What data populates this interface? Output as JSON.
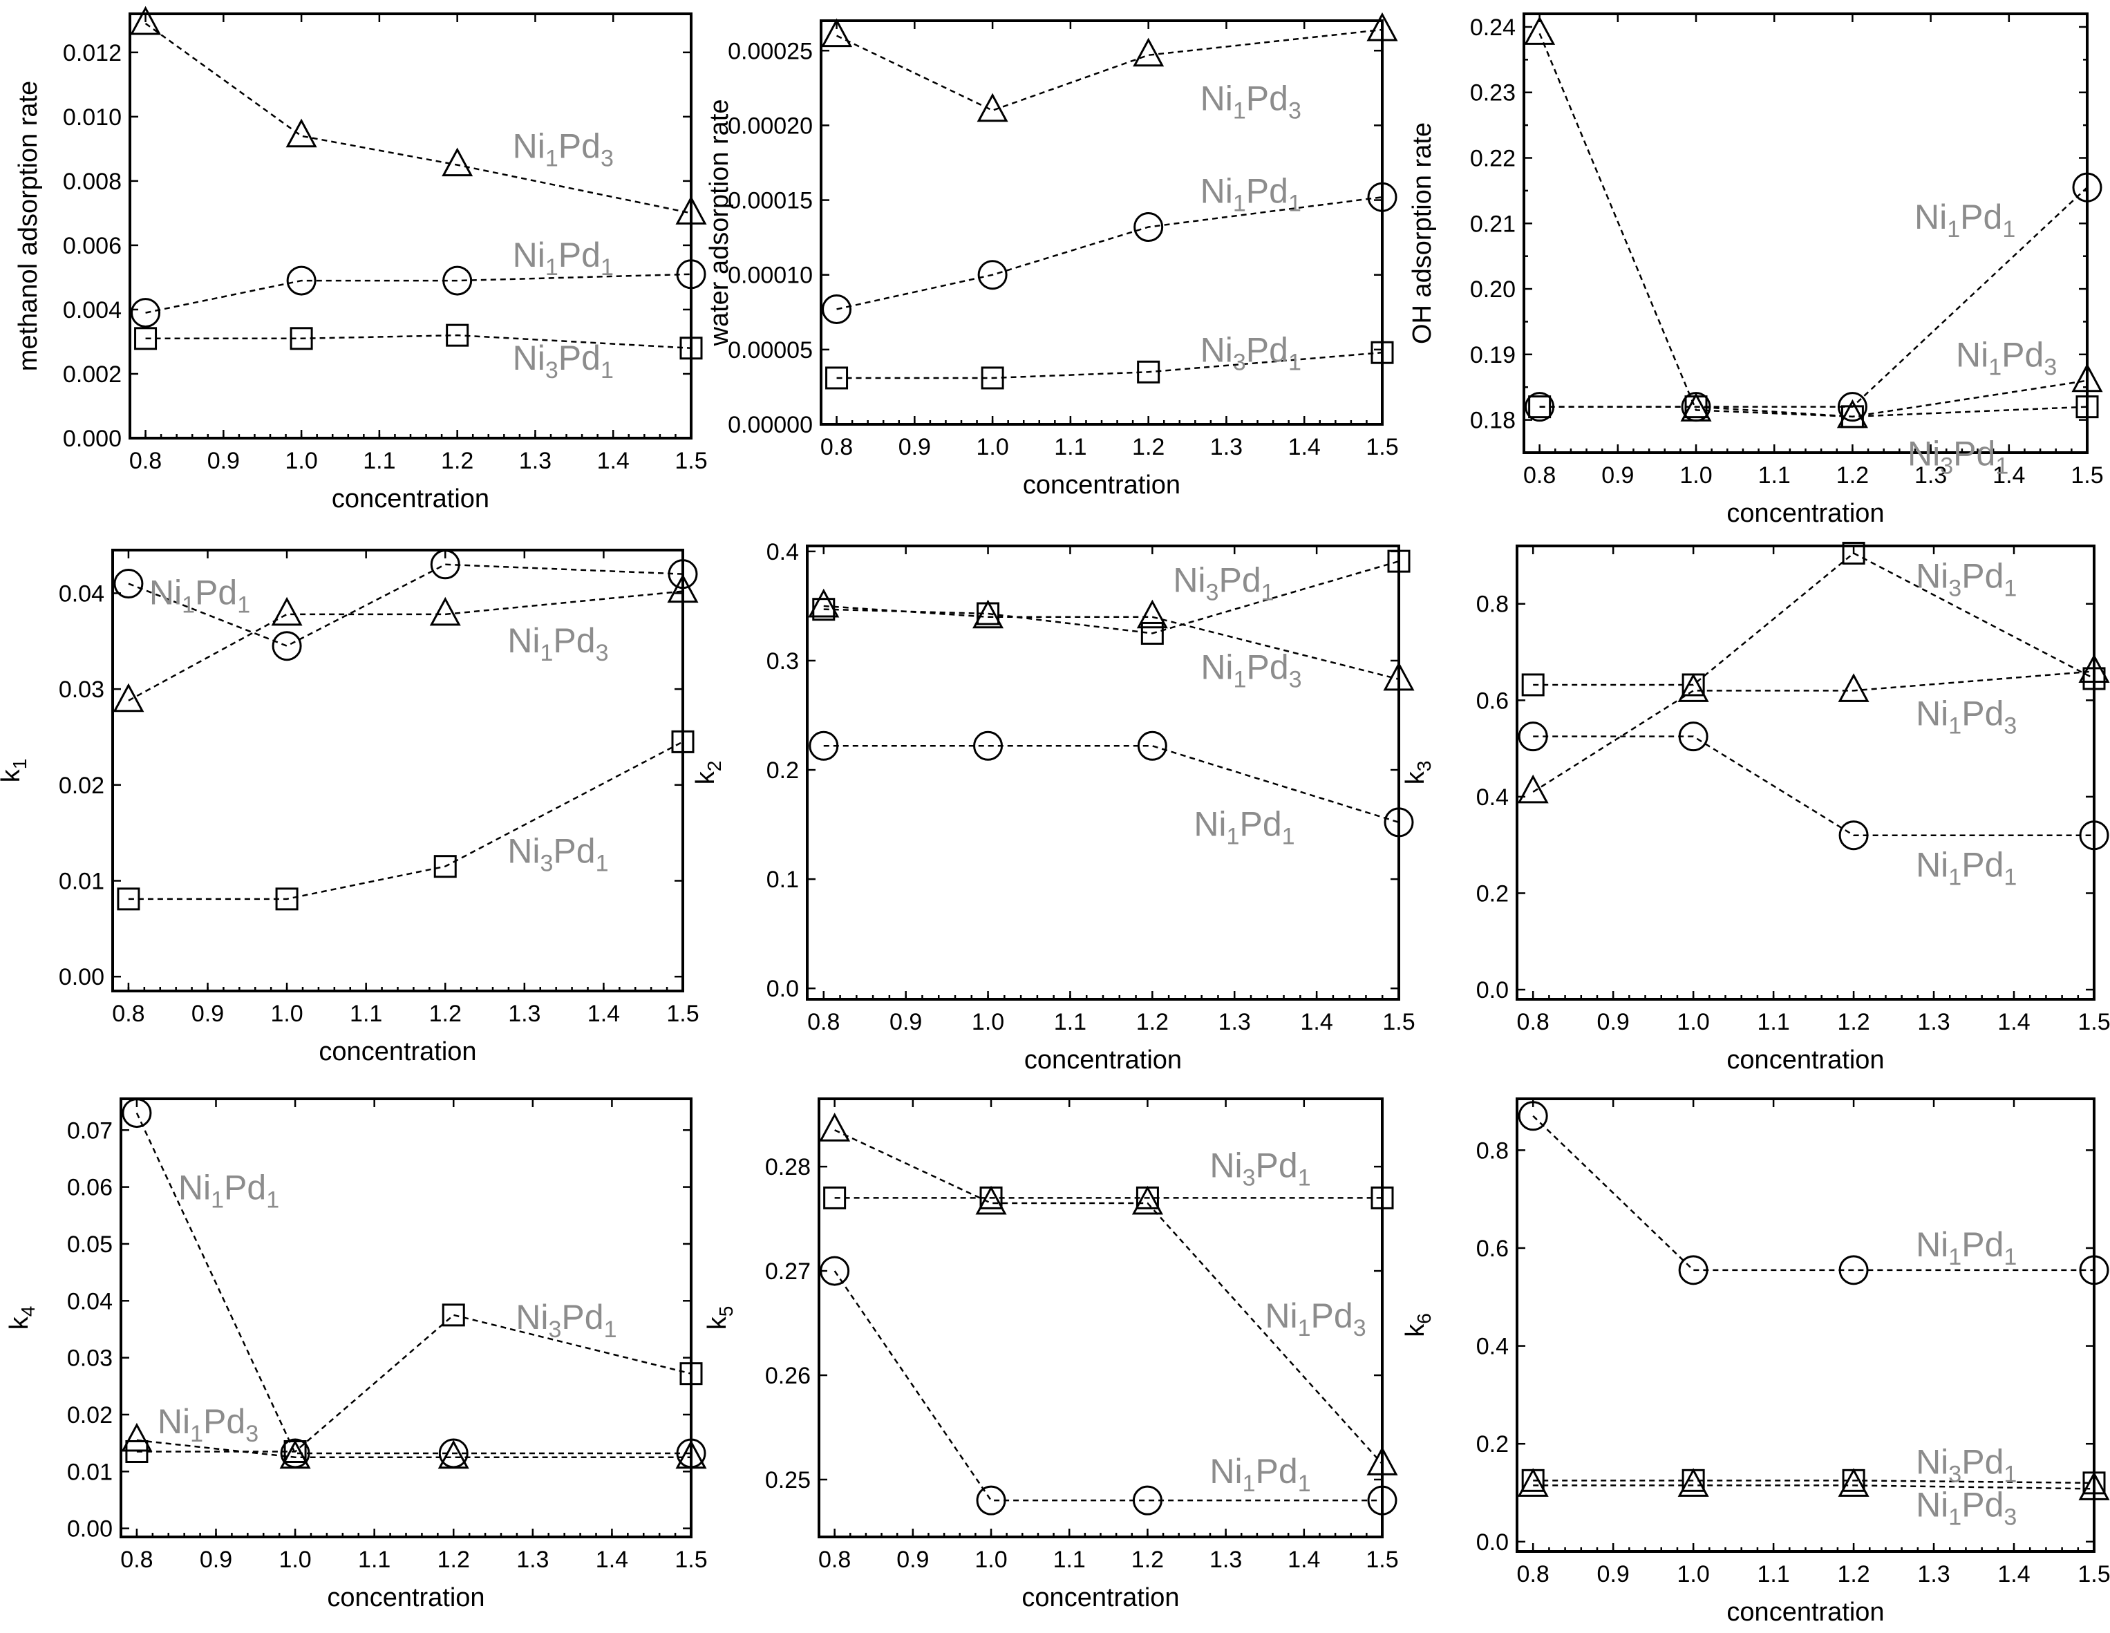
{
  "styles": {
    "series_label_color": "#8c8c8c",
    "line_color": "#000000",
    "background": "#ffffff"
  },
  "markers": {
    "Ni1Pd1": "circle",
    "Ni1Pd3": "triangle",
    "Ni3Pd1": "square"
  },
  "chart_data": [
    {
      "type": "line",
      "xlabel": "concentration",
      "ylabel": "methanol adsorption rate",
      "x": [
        0.8,
        1.0,
        1.2,
        1.5
      ],
      "xlim": [
        0.78,
        1.5
      ],
      "xticks": [
        "0.8",
        "0.9",
        "1.0",
        "1.1",
        "1.2",
        "1.3",
        "1.4",
        "1.5"
      ],
      "ylim": [
        0,
        0.0132
      ],
      "yticks": [
        "0.000",
        "0.002",
        "0.004",
        "0.006",
        "0.008",
        "0.010",
        "0.012"
      ],
      "series": [
        {
          "name": "Ni1Pd3",
          "marker": "triangle",
          "values": [
            0.0129,
            0.0094,
            0.0085,
            0.007
          ]
        },
        {
          "name": "Ni1Pd1",
          "marker": "circle",
          "values": [
            0.0039,
            0.0049,
            0.0049,
            0.0051
          ]
        },
        {
          "name": "Ni3Pd1",
          "marker": "square",
          "values": [
            0.0031,
            0.0031,
            0.0032,
            0.0028
          ]
        }
      ]
    },
    {
      "type": "line",
      "xlabel": "concentration",
      "ylabel": "water adsorption rate",
      "x": [
        0.8,
        1.0,
        1.2,
        1.5
      ],
      "xlim": [
        0.78,
        1.5
      ],
      "xticks": [
        "0.8",
        "0.9",
        "1.0",
        "1.1",
        "1.2",
        "1.3",
        "1.4",
        "1.5"
      ],
      "ylim": [
        0,
        0.00027
      ],
      "yticks": [
        "0.00000",
        "0.00005",
        "0.00010",
        "0.00015",
        "0.00020",
        "0.00025"
      ],
      "series": [
        {
          "name": "Ni1Pd3",
          "marker": "triangle",
          "values": [
            0.00026,
            0.00021,
            0.000247,
            0.000264
          ]
        },
        {
          "name": "Ni1Pd1",
          "marker": "circle",
          "values": [
            7.7e-05,
            0.0001,
            0.000132,
            0.000152
          ]
        },
        {
          "name": "Ni3Pd1",
          "marker": "square",
          "values": [
            3.1e-05,
            3.1e-05,
            3.5e-05,
            4.8e-05
          ]
        }
      ]
    },
    {
      "type": "line",
      "xlabel": "concentration",
      "ylabel": "OH adsorption rate",
      "x": [
        0.8,
        1.0,
        1.2,
        1.5
      ],
      "xlim": [
        0.78,
        1.5
      ],
      "xticks": [
        "0.8",
        "0.9",
        "1.0",
        "1.1",
        "1.2",
        "1.3",
        "1.4",
        "1.5"
      ],
      "ylim": [
        0.175,
        0.242
      ],
      "yticks": [
        "0.180",
        "0.185",
        "0.190",
        "0.195",
        "0.200",
        "0.205",
        "0.210",
        "0.215",
        "0.220",
        "0.225",
        "0.230",
        "0.235",
        "0.240"
      ],
      "yticks_labels": [
        "0.18",
        "0.19",
        "0.20",
        "0.21",
        "0.22",
        "0.23",
        "0.24"
      ],
      "series": [
        {
          "name": "Ni1Pd3",
          "marker": "triangle",
          "values": [
            0.239,
            0.1815,
            0.1805,
            0.186
          ]
        },
        {
          "name": "Ni1Pd1",
          "marker": "circle",
          "values": [
            0.182,
            0.182,
            0.182,
            0.2155
          ]
        },
        {
          "name": "Ni3Pd1",
          "marker": "square",
          "values": [
            0.182,
            0.182,
            0.1805,
            0.182
          ]
        }
      ]
    },
    {
      "type": "line",
      "xlabel": "concentration",
      "ylabel": "k",
      "ylabel_sub": "1",
      "x": [
        0.8,
        1.0,
        1.2,
        1.5
      ],
      "xlim": [
        0.78,
        1.5
      ],
      "xticks": [
        "0.8",
        "0.9",
        "1.0",
        "1.1",
        "1.2",
        "1.3",
        "1.4",
        "1.5"
      ],
      "ylim": [
        -0.0015,
        0.0445
      ],
      "yticks": [
        "0.00",
        "0.01",
        "0.02",
        "0.03",
        "0.04"
      ],
      "series": [
        {
          "name": "Ni1Pd1",
          "marker": "circle",
          "values": [
            0.041,
            0.0345,
            0.043,
            0.042
          ]
        },
        {
          "name": "Ni1Pd3",
          "marker": "triangle",
          "values": [
            0.0288,
            0.0378,
            0.0378,
            0.0402
          ]
        },
        {
          "name": "Ni3Pd1",
          "marker": "square",
          "values": [
            0.0081,
            0.0081,
            0.0115,
            0.0245
          ]
        }
      ]
    },
    {
      "type": "line",
      "xlabel": "concentration",
      "ylabel": "k",
      "ylabel_sub": "2",
      "x": [
        0.8,
        1.0,
        1.2,
        1.5
      ],
      "xlim": [
        0.78,
        1.5
      ],
      "xticks": [
        "0.8",
        "0.9",
        "1.0",
        "1.1",
        "1.2",
        "1.3",
        "1.4",
        "1.5"
      ],
      "ylim": [
        -0.01,
        0.405
      ],
      "yticks": [
        "0.0",
        "0.1",
        "0.2",
        "0.3",
        "0.4"
      ],
      "series": [
        {
          "name": "Ni3Pd1",
          "marker": "square",
          "values": [
            0.347,
            0.343,
            0.325,
            0.391
          ]
        },
        {
          "name": "Ni1Pd3",
          "marker": "triangle",
          "values": [
            0.35,
            0.34,
            0.34,
            0.283
          ]
        },
        {
          "name": "Ni1Pd1",
          "marker": "circle",
          "values": [
            0.222,
            0.222,
            0.222,
            0.152
          ]
        }
      ]
    },
    {
      "type": "line",
      "xlabel": "concentration",
      "ylabel": "k",
      "ylabel_sub": "3",
      "x": [
        0.8,
        1.0,
        1.2,
        1.5
      ],
      "xlim": [
        0.78,
        1.5
      ],
      "xticks": [
        "0.8",
        "0.9",
        "1.0",
        "1.1",
        "1.2",
        "1.3",
        "1.4",
        "1.5"
      ],
      "ylim": [
        -0.02,
        0.92
      ],
      "yticks": [
        "0.0",
        "0.2",
        "0.4",
        "0.6",
        "0.8"
      ],
      "series": [
        {
          "name": "Ni3Pd1",
          "marker": "square",
          "values": [
            0.632,
            0.632,
            0.905,
            0.645
          ]
        },
        {
          "name": "Ni1Pd3",
          "marker": "triangle",
          "values": [
            0.41,
            0.62,
            0.62,
            0.66
          ]
        },
        {
          "name": "Ni1Pd1",
          "marker": "circle",
          "values": [
            0.525,
            0.525,
            0.32,
            0.32
          ]
        }
      ]
    },
    {
      "type": "line",
      "xlabel": "concentration",
      "ylabel": "k",
      "ylabel_sub": "4",
      "x": [
        0.8,
        1.0,
        1.2,
        1.5
      ],
      "xlim": [
        0.78,
        1.5
      ],
      "xticks": [
        "0.8",
        "0.9",
        "1.0",
        "1.1",
        "1.2",
        "1.3",
        "1.4",
        "1.5"
      ],
      "ylim": [
        -0.0015,
        0.0755
      ],
      "yticks": [
        "0.00",
        "0.01",
        "0.02",
        "0.03",
        "0.04",
        "0.05",
        "0.06",
        "0.07"
      ],
      "series": [
        {
          "name": "Ni1Pd1",
          "marker": "circle",
          "values": [
            0.073,
            0.0132,
            0.0132,
            0.0132
          ]
        },
        {
          "name": "Ni3Pd1",
          "marker": "square",
          "values": [
            0.0135,
            0.0135,
            0.0375,
            0.0272
          ]
        },
        {
          "name": "Ni1Pd3",
          "marker": "triangle",
          "values": [
            0.0155,
            0.0125,
            0.0125,
            0.0125
          ]
        }
      ]
    },
    {
      "type": "line",
      "xlabel": "concentration",
      "ylabel": "k",
      "ylabel_sub": "5",
      "x": [
        0.8,
        1.0,
        1.2,
        1.5
      ],
      "xlim": [
        0.78,
        1.5
      ],
      "xticks": [
        "0.8",
        "0.9",
        "1.0",
        "1.1",
        "1.2",
        "1.3",
        "1.4",
        "1.5"
      ],
      "ylim": [
        0.2445,
        0.2865
      ],
      "yticks": [
        "0.25",
        "0.26",
        "0.27",
        "0.28"
      ],
      "series": [
        {
          "name": "Ni3Pd1",
          "marker": "square",
          "values": [
            0.277,
            0.277,
            0.277,
            0.277
          ]
        },
        {
          "name": "Ni1Pd3",
          "marker": "triangle",
          "values": [
            0.2835,
            0.2765,
            0.2765,
            0.2515
          ]
        },
        {
          "name": "Ni1Pd1",
          "marker": "circle",
          "values": [
            0.27,
            0.248,
            0.248,
            0.248
          ]
        }
      ]
    },
    {
      "type": "line",
      "xlabel": "concentration",
      "ylabel": "k",
      "ylabel_sub": "6",
      "x": [
        0.8,
        1.0,
        1.2,
        1.5
      ],
      "xlim": [
        0.78,
        1.5
      ],
      "xticks": [
        "0.8",
        "0.9",
        "1.0",
        "1.1",
        "1.2",
        "1.3",
        "1.4",
        "1.5"
      ],
      "ylim": [
        -0.02,
        0.905
      ],
      "yticks": [
        "0.0",
        "0.2",
        "0.4",
        "0.6",
        "0.8"
      ],
      "series": [
        {
          "name": "Ni1Pd1",
          "marker": "circle",
          "values": [
            0.87,
            0.555,
            0.555,
            0.555
          ]
        },
        {
          "name": "Ni3Pd1",
          "marker": "square",
          "values": [
            0.125,
            0.125,
            0.125,
            0.12
          ]
        },
        {
          "name": "Ni1Pd3",
          "marker": "triangle",
          "values": [
            0.115,
            0.115,
            0.115,
            0.108
          ]
        }
      ]
    }
  ]
}
